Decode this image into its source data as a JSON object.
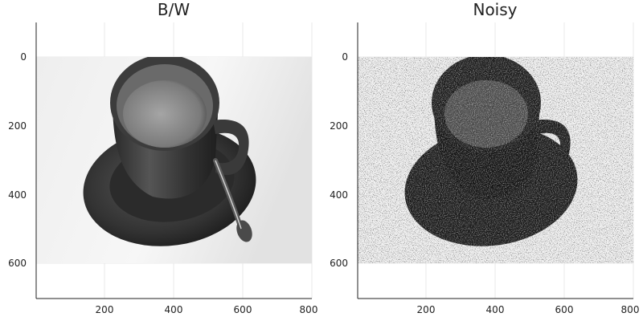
{
  "chart_data": [
    {
      "type": "heatmap",
      "title": "B/W",
      "xlabel": "",
      "ylabel": "",
      "xlim": [
        0,
        800
      ],
      "ylim": [
        700,
        -100
      ],
      "image_extent": {
        "x": [
          0,
          800
        ],
        "y": [
          0,
          600
        ]
      },
      "x_ticks": [
        200,
        400,
        600,
        800
      ],
      "y_ticks": [
        0,
        200,
        400,
        600
      ],
      "colormap": "grayscale",
      "content": "grayscale photograph of a coffee cup on a saucer with a spoon"
    },
    {
      "type": "heatmap",
      "title": "Noisy",
      "xlabel": "",
      "ylabel": "",
      "xlim": [
        0,
        800
      ],
      "ylim": [
        700,
        -100
      ],
      "image_extent": {
        "x": [
          0,
          800
        ],
        "y": [
          0,
          600
        ]
      },
      "x_ticks": [
        200,
        400,
        600,
        800
      ],
      "y_ticks": [
        0,
        200,
        400,
        600
      ],
      "colormap": "binary",
      "content": "binary noisy version of the coffee cup image"
    }
  ]
}
